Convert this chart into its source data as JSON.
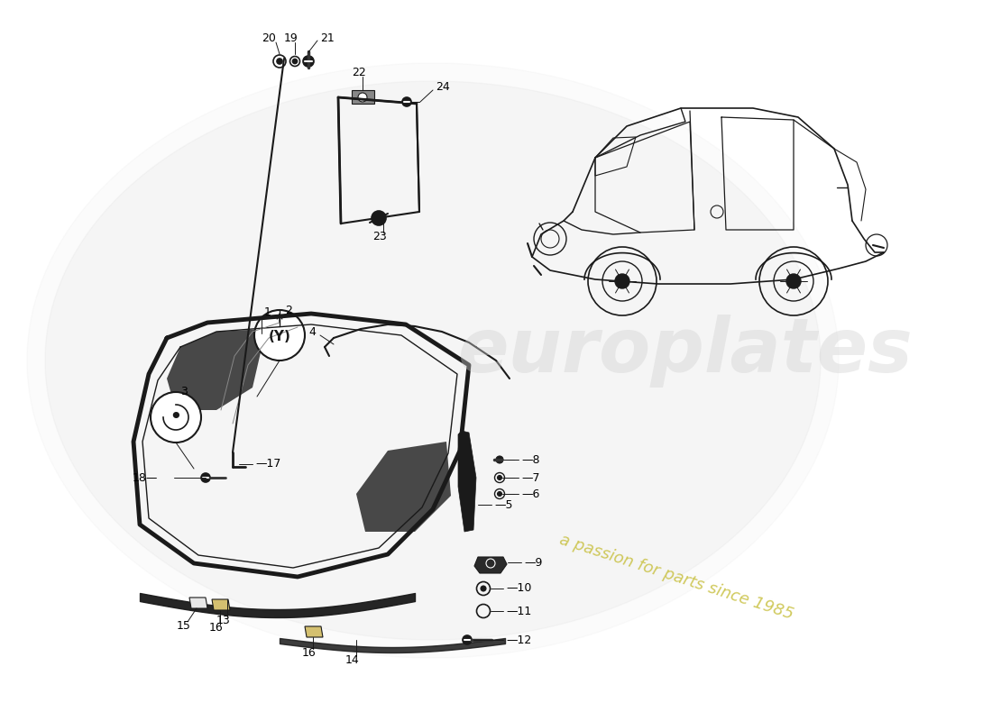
{
  "background_color": "#ffffff",
  "line_color": "#1a1a1a",
  "watermark1": "europlates",
  "watermark2": "a passion for parts since 1985",
  "fig_width": 11.0,
  "fig_height": 8.0
}
